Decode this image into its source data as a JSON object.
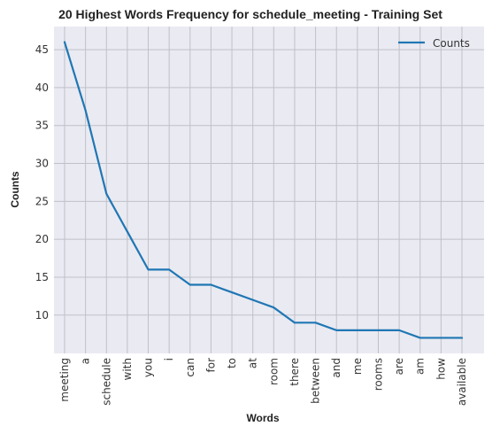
{
  "chart_data": {
    "type": "line",
    "title": "20 Highest Words Frequency for schedule_meeting - Training Set",
    "xlabel": "Words",
    "ylabel": "Counts",
    "categories": [
      "meeting",
      "a",
      "schedule",
      "with",
      "you",
      "i",
      "can",
      "for",
      "to",
      "at",
      "room",
      "there",
      "between",
      "and",
      "me",
      "rooms",
      "are",
      "am",
      "how",
      "available"
    ],
    "series": [
      {
        "name": "Counts",
        "values": [
          46,
          37,
          26,
          21,
          16,
          16,
          14,
          14,
          13,
          12,
          11,
          9,
          9,
          8,
          8,
          8,
          8,
          7,
          7,
          7
        ]
      }
    ],
    "yticks": [
      10,
      15,
      20,
      25,
      30,
      35,
      40,
      45
    ],
    "ylim": [
      4.95,
      48.05
    ],
    "grid": true,
    "legend": "top-right",
    "colors": {
      "line": "#1f77b4",
      "plot_bg": "#eaeaf2",
      "grid": "#c0c0c8"
    }
  }
}
